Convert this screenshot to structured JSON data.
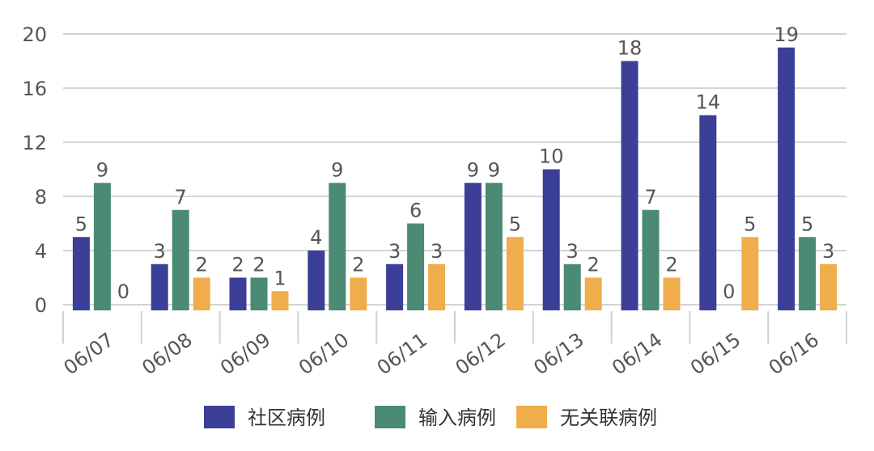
{
  "chart_data": {
    "type": "bar",
    "title": "",
    "xlabel": "",
    "ylabel": "",
    "ylim": [
      0,
      20
    ],
    "yticks": [
      0,
      4,
      8,
      12,
      16,
      20
    ],
    "grid": true,
    "legend_position": "bottom",
    "categories": [
      "06/07",
      "06/08",
      "06/09",
      "06/10",
      "06/11",
      "06/12",
      "06/13",
      "06/14",
      "06/15",
      "06/16"
    ],
    "series": [
      {
        "name": "社区病例",
        "color": "#3b3f97",
        "values": [
          5,
          3,
          2,
          4,
          3,
          9,
          10,
          18,
          14,
          19
        ],
        "labels": [
          "5",
          "3",
          "2",
          "4",
          "3",
          "9",
          "10",
          "18",
          "14",
          "19"
        ]
      },
      {
        "name": "输入病例",
        "color": "#4b8a75",
        "values": [
          9,
          7,
          2,
          9,
          6,
          9,
          3,
          7,
          0,
          5
        ],
        "labels": [
          "9",
          "7",
          "2",
          "9",
          "6",
          "9",
          "3",
          "7",
          "0",
          "5"
        ]
      },
      {
        "name": "无关联病例",
        "color": "#efad4c",
        "values": [
          0,
          2,
          1,
          2,
          3,
          5,
          2,
          2,
          5,
          3
        ],
        "labels": [
          "0",
          "2",
          "1",
          "2",
          "3",
          "5",
          "2",
          "2",
          "5",
          "3"
        ]
      }
    ]
  }
}
